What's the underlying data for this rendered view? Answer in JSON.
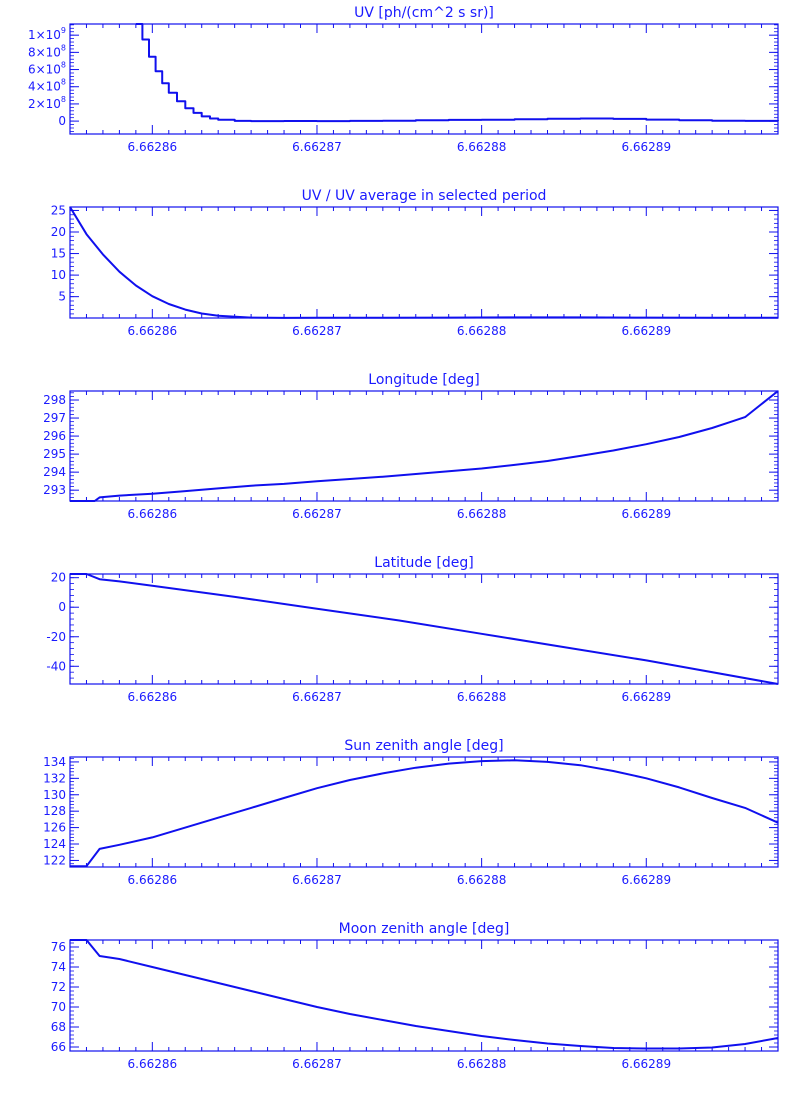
{
  "style": {
    "color": "#1010ee",
    "background": "#ffffff"
  },
  "chart_data": [
    {
      "type": "line",
      "title": "UV [ph/(cm^2 s sr)]",
      "xlabel": "",
      "ylabel": "",
      "xlim": [
        6.662855,
        6.662898
      ],
      "ylim": [
        -150000000,
        1130000000
      ],
      "xticks": [
        6.66286,
        6.66287,
        6.66288,
        6.66289
      ],
      "xtick_labels": [
        "6.66286",
        "6.66287",
        "6.66288",
        "6.66289"
      ],
      "yticks": [
        0,
        200000000,
        400000000,
        600000000,
        800000000,
        1000000000
      ],
      "ytick_labels": [
        {
          "base": "0",
          "exp": ""
        },
        {
          "base": "2×10",
          "exp": "8"
        },
        {
          "base": "4×10",
          "exp": "8"
        },
        {
          "base": "6×10",
          "exp": "8"
        },
        {
          "base": "8×10",
          "exp": "8"
        },
        {
          "base": "1×10",
          "exp": "9"
        }
      ],
      "step": true,
      "x": [
        6.662859,
        6.6628594,
        6.6628598,
        6.6628602,
        6.6628606,
        6.662861,
        6.6628615,
        6.662862,
        6.6628625,
        6.662863,
        6.6628635,
        6.662864,
        6.662865,
        6.662866,
        6.662868,
        6.66287,
        6.662872,
        6.662874,
        6.662876,
        6.662878,
        6.66288,
        6.662882,
        6.662884,
        6.662886,
        6.662888,
        6.66289,
        6.662892,
        6.662894,
        6.662896,
        6.662898
      ],
      "y": [
        1130000000,
        950000000,
        750000000,
        580000000,
        440000000,
        330000000,
        230000000,
        150000000,
        95000000,
        55000000,
        30000000,
        15000000,
        3000000,
        0,
        1000000,
        0,
        2000000,
        5000000,
        10000000,
        14000000,
        16000000,
        22000000,
        28000000,
        30000000,
        26000000,
        18000000,
        10000000,
        5000000,
        2000000,
        1000000
      ]
    },
    {
      "type": "line",
      "title": "UV / UV average in selected period",
      "xlabel": "",
      "ylabel": "",
      "xlim": [
        6.662855,
        6.662898
      ],
      "ylim": [
        0.05,
        25.8
      ],
      "xticks": [
        6.66286,
        6.66287,
        6.66288,
        6.66289
      ],
      "xtick_labels": [
        "6.66286",
        "6.66287",
        "6.66288",
        "6.66289"
      ],
      "yticks": [
        5,
        10,
        15,
        20,
        25
      ],
      "ytick_labels": [
        {
          "base": "5",
          "exp": ""
        },
        {
          "base": "10",
          "exp": ""
        },
        {
          "base": "15",
          "exp": ""
        },
        {
          "base": "20",
          "exp": ""
        },
        {
          "base": "25",
          "exp": ""
        }
      ],
      "step": false,
      "x": [
        6.662855,
        6.662856,
        6.662857,
        6.662858,
        6.662859,
        6.66286,
        6.662861,
        6.662862,
        6.662863,
        6.662864,
        6.662866,
        6.662868,
        6.66287,
        6.662874,
        6.662878,
        6.662882,
        6.662886,
        6.66289,
        6.662894,
        6.662898
      ],
      "y": [
        25.8,
        19.5,
        14.8,
        10.8,
        7.6,
        5.1,
        3.3,
        2.0,
        1.1,
        0.55,
        0.15,
        0.08,
        0.1,
        0.1,
        0.15,
        0.2,
        0.2,
        0.15,
        0.1,
        0.1
      ]
    },
    {
      "type": "line",
      "title": "Longitude [deg]",
      "xlabel": "",
      "ylabel": "",
      "xlim": [
        6.662855,
        6.662898
      ],
      "ylim": [
        292.4,
        298.5
      ],
      "xticks": [
        6.66286,
        6.66287,
        6.66288,
        6.66289
      ],
      "xtick_labels": [
        "6.66286",
        "6.66287",
        "6.66288",
        "6.66289"
      ],
      "yticks": [
        293,
        294,
        295,
        296,
        297,
        298
      ],
      "ytick_labels": [
        {
          "base": "293",
          "exp": ""
        },
        {
          "base": "294",
          "exp": ""
        },
        {
          "base": "295",
          "exp": ""
        },
        {
          "base": "296",
          "exp": ""
        },
        {
          "base": "297",
          "exp": ""
        },
        {
          "base": "298",
          "exp": ""
        }
      ],
      "step": false,
      "x": [
        6.662855,
        6.6628565,
        6.6628568,
        6.662858,
        6.66286,
        6.662862,
        6.662864,
        6.662866,
        6.662868,
        6.66287,
        6.662872,
        6.662874,
        6.662876,
        6.662878,
        6.66288,
        6.662882,
        6.662884,
        6.662886,
        6.662888,
        6.66289,
        6.662892,
        6.662894,
        6.662895,
        6.662896,
        6.662898
      ],
      "y": [
        292.4,
        292.4,
        292.6,
        292.7,
        292.8,
        292.95,
        293.1,
        293.25,
        293.35,
        293.5,
        293.62,
        293.75,
        293.9,
        294.05,
        294.2,
        294.4,
        294.62,
        294.9,
        295.2,
        295.55,
        295.95,
        296.45,
        296.75,
        297.05,
        298.5
      ]
    },
    {
      "type": "line",
      "title": "Latitude [deg]",
      "xlabel": "",
      "ylabel": "",
      "xlim": [
        6.662855,
        6.662898
      ],
      "ylim": [
        -52,
        22.5
      ],
      "xticks": [
        6.66286,
        6.66287,
        6.66288,
        6.66289
      ],
      "xtick_labels": [
        "6.66286",
        "6.66287",
        "6.66288",
        "6.66289"
      ],
      "yticks": [
        -40,
        -20,
        0,
        20
      ],
      "ytick_labels": [
        {
          "base": "-40",
          "exp": ""
        },
        {
          "base": "-20",
          "exp": ""
        },
        {
          "base": "0",
          "exp": ""
        },
        {
          "base": "20",
          "exp": ""
        }
      ],
      "step": false,
      "x": [
        6.662855,
        6.662856,
        6.6628568,
        6.662858,
        6.66286,
        6.662865,
        6.66287,
        6.662875,
        6.66288,
        6.662885,
        6.66289,
        6.662898
      ],
      "y": [
        22.5,
        22.5,
        19,
        17.5,
        14.5,
        7,
        -1,
        -9,
        -18,
        -27,
        -36,
        -52
      ]
    },
    {
      "type": "line",
      "title": "Sun zenith angle [deg]",
      "xlabel": "",
      "ylabel": "",
      "xlim": [
        6.662855,
        6.662898
      ],
      "ylim": [
        121.2,
        134.6
      ],
      "xticks": [
        6.66286,
        6.66287,
        6.66288,
        6.66289
      ],
      "xtick_labels": [
        "6.66286",
        "6.66287",
        "6.66288",
        "6.66289"
      ],
      "yticks": [
        122,
        124,
        126,
        128,
        130,
        132,
        134
      ],
      "ytick_labels": [
        {
          "base": "122",
          "exp": ""
        },
        {
          "base": "124",
          "exp": ""
        },
        {
          "base": "126",
          "exp": ""
        },
        {
          "base": "128",
          "exp": ""
        },
        {
          "base": "130",
          "exp": ""
        },
        {
          "base": "132",
          "exp": ""
        },
        {
          "base": "134",
          "exp": ""
        }
      ],
      "step": false,
      "x": [
        6.662855,
        6.662856,
        6.6628568,
        6.662858,
        6.66286,
        6.662862,
        6.662864,
        6.662866,
        6.662868,
        6.66287,
        6.662872,
        6.662874,
        6.662876,
        6.662878,
        6.66288,
        6.662882,
        6.662884,
        6.662886,
        6.662888,
        6.66289,
        6.662892,
        6.662894,
        6.662896,
        6.662898
      ],
      "y": [
        121.3,
        121.3,
        123.4,
        123.9,
        124.8,
        126.0,
        127.2,
        128.4,
        129.6,
        130.8,
        131.8,
        132.6,
        133.3,
        133.8,
        134.1,
        134.2,
        134.0,
        133.6,
        132.9,
        132.0,
        130.9,
        129.6,
        128.4,
        126.6
      ]
    },
    {
      "type": "line",
      "title": "Moon zenith angle [deg]",
      "xlabel": "",
      "ylabel": "",
      "xlim": [
        6.662855,
        6.662898
      ],
      "ylim": [
        65.6,
        76.7
      ],
      "xticks": [
        6.66286,
        6.66287,
        6.66288,
        6.66289
      ],
      "xtick_labels": [
        "6.66286",
        "6.66287",
        "6.66288",
        "6.66289"
      ],
      "yticks": [
        66,
        68,
        70,
        72,
        74,
        76
      ],
      "ytick_labels": [
        {
          "base": "66",
          "exp": ""
        },
        {
          "base": "68",
          "exp": ""
        },
        {
          "base": "70",
          "exp": ""
        },
        {
          "base": "72",
          "exp": ""
        },
        {
          "base": "74",
          "exp": ""
        },
        {
          "base": "76",
          "exp": ""
        }
      ],
      "step": false,
      "x": [
        6.662855,
        6.662856,
        6.6628568,
        6.662858,
        6.66286,
        6.662862,
        6.662864,
        6.662866,
        6.662868,
        6.66287,
        6.662872,
        6.662874,
        6.662876,
        6.662878,
        6.66288,
        6.662882,
        6.662884,
        6.662886,
        6.662888,
        6.66289,
        6.662892,
        6.662894,
        6.662896,
        6.662898
      ],
      "y": [
        76.7,
        76.7,
        75.1,
        74.8,
        74.0,
        73.2,
        72.4,
        71.6,
        70.8,
        70.0,
        69.3,
        68.7,
        68.1,
        67.6,
        67.1,
        66.7,
        66.35,
        66.1,
        65.9,
        65.85,
        65.85,
        65.95,
        66.3,
        66.9
      ]
    }
  ]
}
